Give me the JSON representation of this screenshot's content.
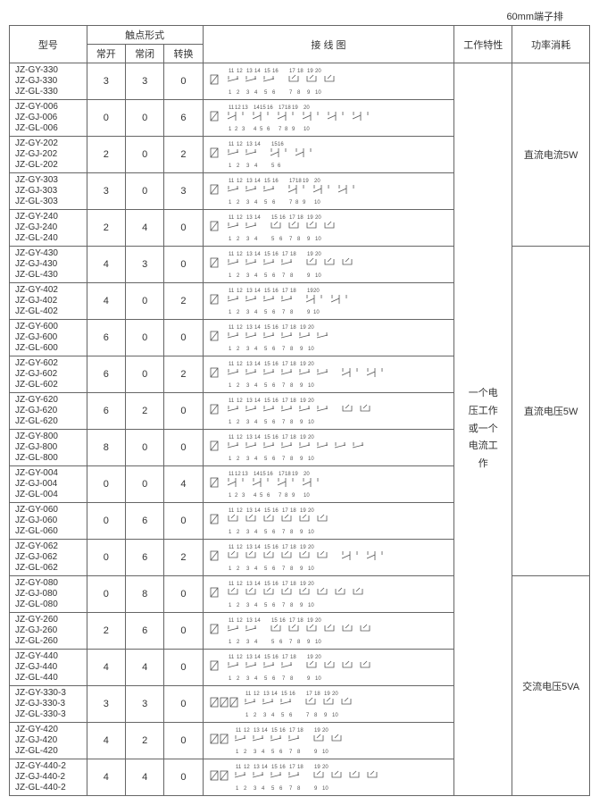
{
  "top_label": "60mm端子排",
  "headers": {
    "model": "型号",
    "contact_form": "触点形式",
    "normally_open": "常开",
    "normally_closed": "常闭",
    "changeover": "转换",
    "wiring_diagram": "接  线  图",
    "working_char": "工作特性",
    "power_consumption": "功率消耗"
  },
  "working_char_text": "一个电\n压工作\n或一个\n电流工\n作",
  "power_rows": [
    {
      "text": "直流电流5W",
      "span": 5
    },
    {
      "text": "直流电压5W",
      "span": 9
    },
    {
      "text": "交流电压5VA",
      "span": 6
    }
  ],
  "diagram_colors": {
    "line": "#555555",
    "text": "#555555"
  },
  "rows": [
    {
      "models": [
        "JZ-GY-330",
        "JZ-GJ-330",
        "JZ-GL-330"
      ],
      "no": "3",
      "nc": "3",
      "co": "0",
      "top_nums": [
        11,
        12,
        13,
        14,
        15,
        16,
        17,
        18,
        19,
        20
      ],
      "bot_nums": [
        1,
        2,
        3,
        4,
        5,
        6,
        7,
        8,
        9,
        10
      ],
      "groups": [
        {
          "type": "no",
          "pairs": 3
        },
        {
          "type": "nc",
          "pairs": 3
        },
        {
          "type": "spacer"
        }
      ]
    },
    {
      "models": [
        "JZ-GY-006",
        "JZ-GJ-006",
        "JZ-GL-006"
      ],
      "no": "0",
      "nc": "0",
      "co": "6",
      "top_nums": [
        11,
        12,
        13,
        14,
        15,
        16,
        17,
        18,
        19,
        20
      ],
      "bot_nums": [
        1,
        2,
        3,
        4,
        5,
        6,
        7,
        8,
        9,
        10
      ],
      "groups": [
        {
          "type": "co",
          "count": 6
        }
      ]
    },
    {
      "models": [
        "JZ-GY-202",
        "JZ-GJ-202",
        "JZ-GL-202"
      ],
      "no": "2",
      "nc": "0",
      "co": "2",
      "top_nums": [
        11,
        12,
        13,
        14,
        15,
        16
      ],
      "bot_nums": [
        1,
        2,
        3,
        4,
        5,
        6
      ],
      "groups": [
        {
          "type": "no",
          "pairs": 2
        },
        {
          "type": "co",
          "count": 2
        }
      ]
    },
    {
      "models": [
        "JZ-GY-303",
        "JZ-GJ-303",
        "JZ-GL-303"
      ],
      "no": "3",
      "nc": "0",
      "co": "3",
      "top_nums": [
        11,
        12,
        13,
        14,
        15,
        16,
        17,
        18,
        19,
        20
      ],
      "bot_nums": [
        1,
        2,
        3,
        4,
        5,
        6,
        7,
        8,
        9,
        10
      ],
      "groups": [
        {
          "type": "no",
          "pairs": 3
        },
        {
          "type": "co",
          "count": 3
        }
      ]
    },
    {
      "models": [
        "JZ-GY-240",
        "JZ-GJ-240",
        "JZ-GL-240"
      ],
      "no": "2",
      "nc": "4",
      "co": "0",
      "top_nums": [
        11,
        12,
        13,
        14,
        15,
        16,
        17,
        18,
        19,
        20
      ],
      "bot_nums": [
        1,
        2,
        3,
        4,
        5,
        6,
        7,
        8,
        9,
        10
      ],
      "groups": [
        {
          "type": "no",
          "pairs": 2
        },
        {
          "type": "nc",
          "pairs": 4
        },
        {
          "type": "spacer"
        }
      ]
    },
    {
      "models": [
        "JZ-GY-430",
        "JZ-GJ-430",
        "JZ-GL-430"
      ],
      "no": "4",
      "nc": "3",
      "co": "0",
      "top_nums": [
        11,
        12,
        13,
        14,
        15,
        16,
        17,
        18,
        19,
        20
      ],
      "bot_nums": [
        1,
        2,
        3,
        4,
        5,
        6,
        7,
        8,
        9,
        10
      ],
      "groups": [
        {
          "type": "no",
          "pairs": 4
        },
        {
          "type": "nc",
          "pairs": 3
        },
        {
          "type": "spacer"
        }
      ]
    },
    {
      "models": [
        "JZ-GY-402",
        "JZ-GJ-402",
        "JZ-GL-402"
      ],
      "no": "4",
      "nc": "0",
      "co": "2",
      "top_nums": [
        11,
        12,
        13,
        14,
        15,
        16,
        17,
        18,
        19,
        20
      ],
      "bot_nums": [
        1,
        2,
        3,
        4,
        5,
        6,
        7,
        8,
        9,
        10
      ],
      "groups": [
        {
          "type": "no",
          "pairs": 4
        },
        {
          "type": "co",
          "count": 2
        }
      ]
    },
    {
      "models": [
        "JZ-GY-600",
        "JZ-GJ-600",
        "JZ-GL-600"
      ],
      "no": "6",
      "nc": "0",
      "co": "0",
      "top_nums": [
        11,
        12,
        13,
        14,
        15,
        16,
        17,
        18,
        19,
        20
      ],
      "bot_nums": [
        1,
        2,
        3,
        4,
        5,
        6,
        7,
        8,
        9,
        10
      ],
      "groups": [
        {
          "type": "no",
          "pairs": 6
        },
        {
          "type": "spacer"
        }
      ]
    },
    {
      "models": [
        "JZ-GY-602",
        "JZ-GJ-602",
        "JZ-GL-602"
      ],
      "no": "6",
      "nc": "0",
      "co": "2",
      "top_nums": [
        11,
        12,
        13,
        14,
        15,
        16,
        17,
        18,
        19,
        20
      ],
      "bot_nums": [
        1,
        2,
        3,
        4,
        5,
        6,
        7,
        8,
        9,
        10
      ],
      "groups": [
        {
          "type": "no",
          "pairs": 6
        },
        {
          "type": "co",
          "count": 2
        }
      ]
    },
    {
      "models": [
        "JZ-GY-620",
        "JZ-GJ-620",
        "JZ-GL-620"
      ],
      "no": "6",
      "nc": "2",
      "co": "0",
      "top_nums": [
        11,
        12,
        13,
        14,
        15,
        16,
        17,
        18,
        19,
        20
      ],
      "bot_nums": [
        1,
        2,
        3,
        4,
        5,
        6,
        7,
        8,
        9,
        10
      ],
      "groups": [
        {
          "type": "no",
          "pairs": 6
        },
        {
          "type": "nc",
          "pairs": 2
        },
        {
          "type": "spacer"
        }
      ]
    },
    {
      "models": [
        "JZ-GY-800",
        "JZ-GJ-800",
        "JZ-GL-800"
      ],
      "no": "8",
      "nc": "0",
      "co": "0",
      "top_nums": [
        11,
        12,
        13,
        14,
        15,
        16,
        17,
        18,
        19,
        20
      ],
      "bot_nums": [
        1,
        2,
        3,
        4,
        5,
        6,
        7,
        8,
        9,
        10
      ],
      "groups": [
        {
          "type": "no",
          "pairs": 8
        },
        {
          "type": "spacer"
        }
      ]
    },
    {
      "models": [
        "JZ-GY-004",
        "JZ-GJ-004",
        "JZ-GL-004"
      ],
      "no": "0",
      "nc": "0",
      "co": "4",
      "top_nums": [
        11,
        12,
        13,
        14,
        15,
        16,
        17,
        18,
        19,
        20
      ],
      "bot_nums": [
        1,
        2,
        3,
        4,
        5,
        6,
        7,
        8,
        9,
        10
      ],
      "groups": [
        {
          "type": "co",
          "count": 4
        }
      ]
    },
    {
      "models": [
        "JZ-GY-060",
        "JZ-GJ-060",
        "JZ-GL-060"
      ],
      "no": "0",
      "nc": "6",
      "co": "0",
      "top_nums": [
        11,
        12,
        13,
        14,
        15,
        16,
        17,
        18,
        19,
        20
      ],
      "bot_nums": [
        1,
        2,
        3,
        4,
        5,
        6,
        7,
        8,
        9,
        10
      ],
      "groups": [
        {
          "type": "nc",
          "pairs": 6
        },
        {
          "type": "spacer"
        }
      ]
    },
    {
      "models": [
        "JZ-GY-062",
        "JZ-GJ-062",
        "JZ-GL-062"
      ],
      "no": "0",
      "nc": "6",
      "co": "2",
      "top_nums": [
        11,
        12,
        13,
        14,
        15,
        16,
        17,
        18,
        19,
        20
      ],
      "bot_nums": [
        1,
        2,
        3,
        4,
        5,
        6,
        7,
        8,
        9,
        10
      ],
      "groups": [
        {
          "type": "nc",
          "pairs": 6
        },
        {
          "type": "co",
          "count": 2
        }
      ]
    },
    {
      "models": [
        "JZ-GY-080",
        "JZ-GJ-080",
        "JZ-GL-080"
      ],
      "no": "0",
      "nc": "8",
      "co": "0",
      "top_nums": [
        11,
        12,
        13,
        14,
        15,
        16,
        17,
        18,
        19,
        20
      ],
      "bot_nums": [
        1,
        2,
        3,
        4,
        5,
        6,
        7,
        8,
        9,
        10
      ],
      "groups": [
        {
          "type": "nc",
          "pairs": 8
        },
        {
          "type": "spacer"
        }
      ]
    },
    {
      "models": [
        "JZ-GY-260",
        "JZ-GJ-260",
        "JZ-GL-260"
      ],
      "no": "2",
      "nc": "6",
      "co": "0",
      "top_nums": [
        11,
        12,
        13,
        14,
        15,
        16,
        17,
        18,
        19,
        20
      ],
      "bot_nums": [
        1,
        2,
        3,
        4,
        5,
        6,
        7,
        8,
        9,
        10
      ],
      "groups": [
        {
          "type": "no",
          "pairs": 2
        },
        {
          "type": "nc",
          "pairs": 6
        },
        {
          "type": "spacer"
        }
      ]
    },
    {
      "models": [
        "JZ-GY-440",
        "JZ-GJ-440",
        "JZ-GL-440"
      ],
      "no": "4",
      "nc": "4",
      "co": "0",
      "top_nums": [
        11,
        12,
        13,
        14,
        15,
        16,
        17,
        18,
        19,
        20
      ],
      "bot_nums": [
        1,
        2,
        3,
        4,
        5,
        6,
        7,
        8,
        9,
        10
      ],
      "groups": [
        {
          "type": "no",
          "pairs": 4
        },
        {
          "type": "nc",
          "pairs": 4
        },
        {
          "type": "spacer"
        }
      ]
    },
    {
      "models": [
        "JZ-GY-330-3",
        "JZ-GJ-330-3",
        "JZ-GL-330-3"
      ],
      "no": "3",
      "nc": "3",
      "co": "0",
      "top_nums": [
        11,
        12,
        13,
        14,
        15,
        16,
        17,
        18,
        19,
        20
      ],
      "bot_nums": [
        1,
        2,
        3,
        4,
        5,
        6,
        7,
        8,
        9,
        10
      ],
      "groups": [
        {
          "type": "coil3"
        },
        {
          "type": "no",
          "pairs": 3
        },
        {
          "type": "nc",
          "pairs": 3
        }
      ]
    },
    {
      "models": [
        "JZ-GY-420",
        "JZ-GJ-420",
        "JZ-GL-420"
      ],
      "no": "4",
      "nc": "2",
      "co": "0",
      "top_nums": [
        11,
        12,
        13,
        14,
        15,
        16,
        17,
        18,
        19,
        20
      ],
      "bot_nums": [
        1,
        2,
        3,
        4,
        5,
        6,
        7,
        8,
        9,
        10
      ],
      "groups": [
        {
          "type": "coil2"
        },
        {
          "type": "no",
          "pairs": 4
        },
        {
          "type": "nc",
          "pairs": 2
        }
      ]
    },
    {
      "models": [
        "JZ-GY-440-2",
        "JZ-GJ-440-2",
        "JZ-GL-440-2"
      ],
      "no": "4",
      "nc": "4",
      "co": "0",
      "top_nums": [
        11,
        12,
        13,
        14,
        15,
        16,
        17,
        18,
        19,
        20
      ],
      "bot_nums": [
        1,
        2,
        3,
        4,
        5,
        6,
        7,
        8,
        9,
        10
      ],
      "groups": [
        {
          "type": "coil2"
        },
        {
          "type": "no",
          "pairs": 4
        },
        {
          "type": "nc",
          "pairs": 4
        }
      ]
    }
  ]
}
